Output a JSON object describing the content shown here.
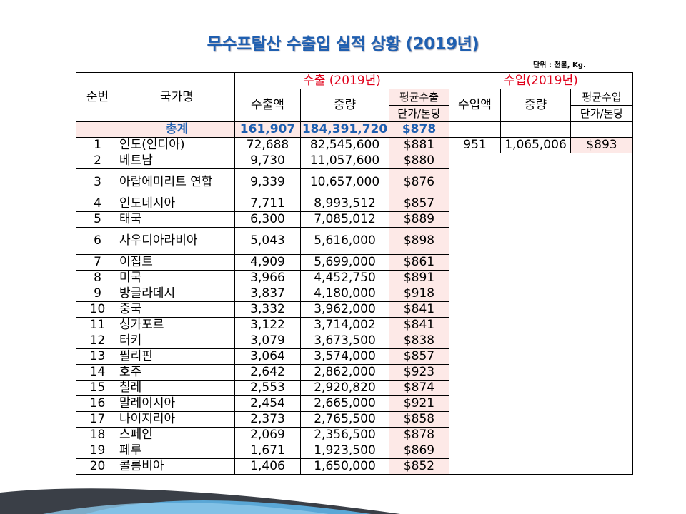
{
  "title": "무수프탈산 수출입 실적 상황 (2019년)",
  "unit": "단위 : 천불, Kg.",
  "headers": {
    "rank": "순번",
    "country": "국가명",
    "export_group": "수출 (2019년)",
    "import_group": "수입(2019년)",
    "export_amount": "수출액",
    "export_weight": "중량",
    "export_unit_price_1": "평균수출",
    "export_unit_price_2": "단가/톤당",
    "import_amount": "수입액",
    "import_weight": "중량",
    "import_unit_price_1": "평균수입",
    "import_unit_price_2": "단가/톤당"
  },
  "total": {
    "label": "총계",
    "export_amount": "161,907",
    "export_weight": "184,391,720",
    "export_unit_price": "$878"
  },
  "import_row": {
    "amount": "951",
    "weight": "1,065,006",
    "unit_price": "$893"
  },
  "rows": [
    {
      "rank": "1",
      "country": "인도(인디아)",
      "amount": "72,688",
      "weight": "82,545,600",
      "price": "$881"
    },
    {
      "rank": "2",
      "country": "베트남",
      "amount": "9,730",
      "weight": "11,057,600",
      "price": "$880"
    },
    {
      "rank": "3",
      "country": "아랍에미리트 연합",
      "amount": "9,339",
      "weight": "10,657,000",
      "price": "$876"
    },
    {
      "rank": "4",
      "country": "인도네시아",
      "amount": "7,711",
      "weight": "8,993,512",
      "price": "$857"
    },
    {
      "rank": "5",
      "country": "태국",
      "amount": "6,300",
      "weight": "7,085,012",
      "price": "$889"
    },
    {
      "rank": "6",
      "country": "사우디아라비아",
      "amount": "5,043",
      "weight": "5,616,000",
      "price": "$898"
    },
    {
      "rank": "7",
      "country": "이집트",
      "amount": "4,909",
      "weight": "5,699,000",
      "price": "$861"
    },
    {
      "rank": "8",
      "country": "미국",
      "amount": "3,966",
      "weight": "4,452,750",
      "price": "$891"
    },
    {
      "rank": "9",
      "country": "방글라데시",
      "amount": "3,837",
      "weight": "4,180,000",
      "price": "$918"
    },
    {
      "rank": "10",
      "country": "중국",
      "amount": "3,332",
      "weight": "3,962,000",
      "price": "$841"
    },
    {
      "rank": "11",
      "country": "싱가포르",
      "amount": "3,122",
      "weight": "3,714,002",
      "price": "$841"
    },
    {
      "rank": "12",
      "country": "터키",
      "amount": "3,079",
      "weight": "3,673,500",
      "price": "$838"
    },
    {
      "rank": "13",
      "country": "필리핀",
      "amount": "3,064",
      "weight": "3,574,000",
      "price": "$857"
    },
    {
      "rank": "14",
      "country": "호주",
      "amount": "2,642",
      "weight": "2,862,000",
      "price": "$923"
    },
    {
      "rank": "15",
      "country": "칠레",
      "amount": "2,553",
      "weight": "2,920,820",
      "price": "$874"
    },
    {
      "rank": "16",
      "country": "말레이시아",
      "amount": "2,454",
      "weight": "2,665,000",
      "price": "$921"
    },
    {
      "rank": "17",
      "country": "나이지리아",
      "amount": "2,373",
      "weight": "2,765,500",
      "price": "$858"
    },
    {
      "rank": "18",
      "country": "스페인",
      "amount": "2,069",
      "weight": "2,356,500",
      "price": "$878"
    },
    {
      "rank": "19",
      "country": "페루",
      "amount": "1,671",
      "weight": "1,923,500",
      "price": "$869"
    },
    {
      "rank": "20",
      "country": "콜롬비아",
      "amount": "1,406",
      "weight": "1,650,000",
      "price": "$852"
    }
  ],
  "colors": {
    "title": "#1f5fb0",
    "group_header": "#e0001a",
    "pink_fill": "#fde9e7",
    "deco_dark": "#3a3f47",
    "deco_blue": "#5aa7d6"
  }
}
